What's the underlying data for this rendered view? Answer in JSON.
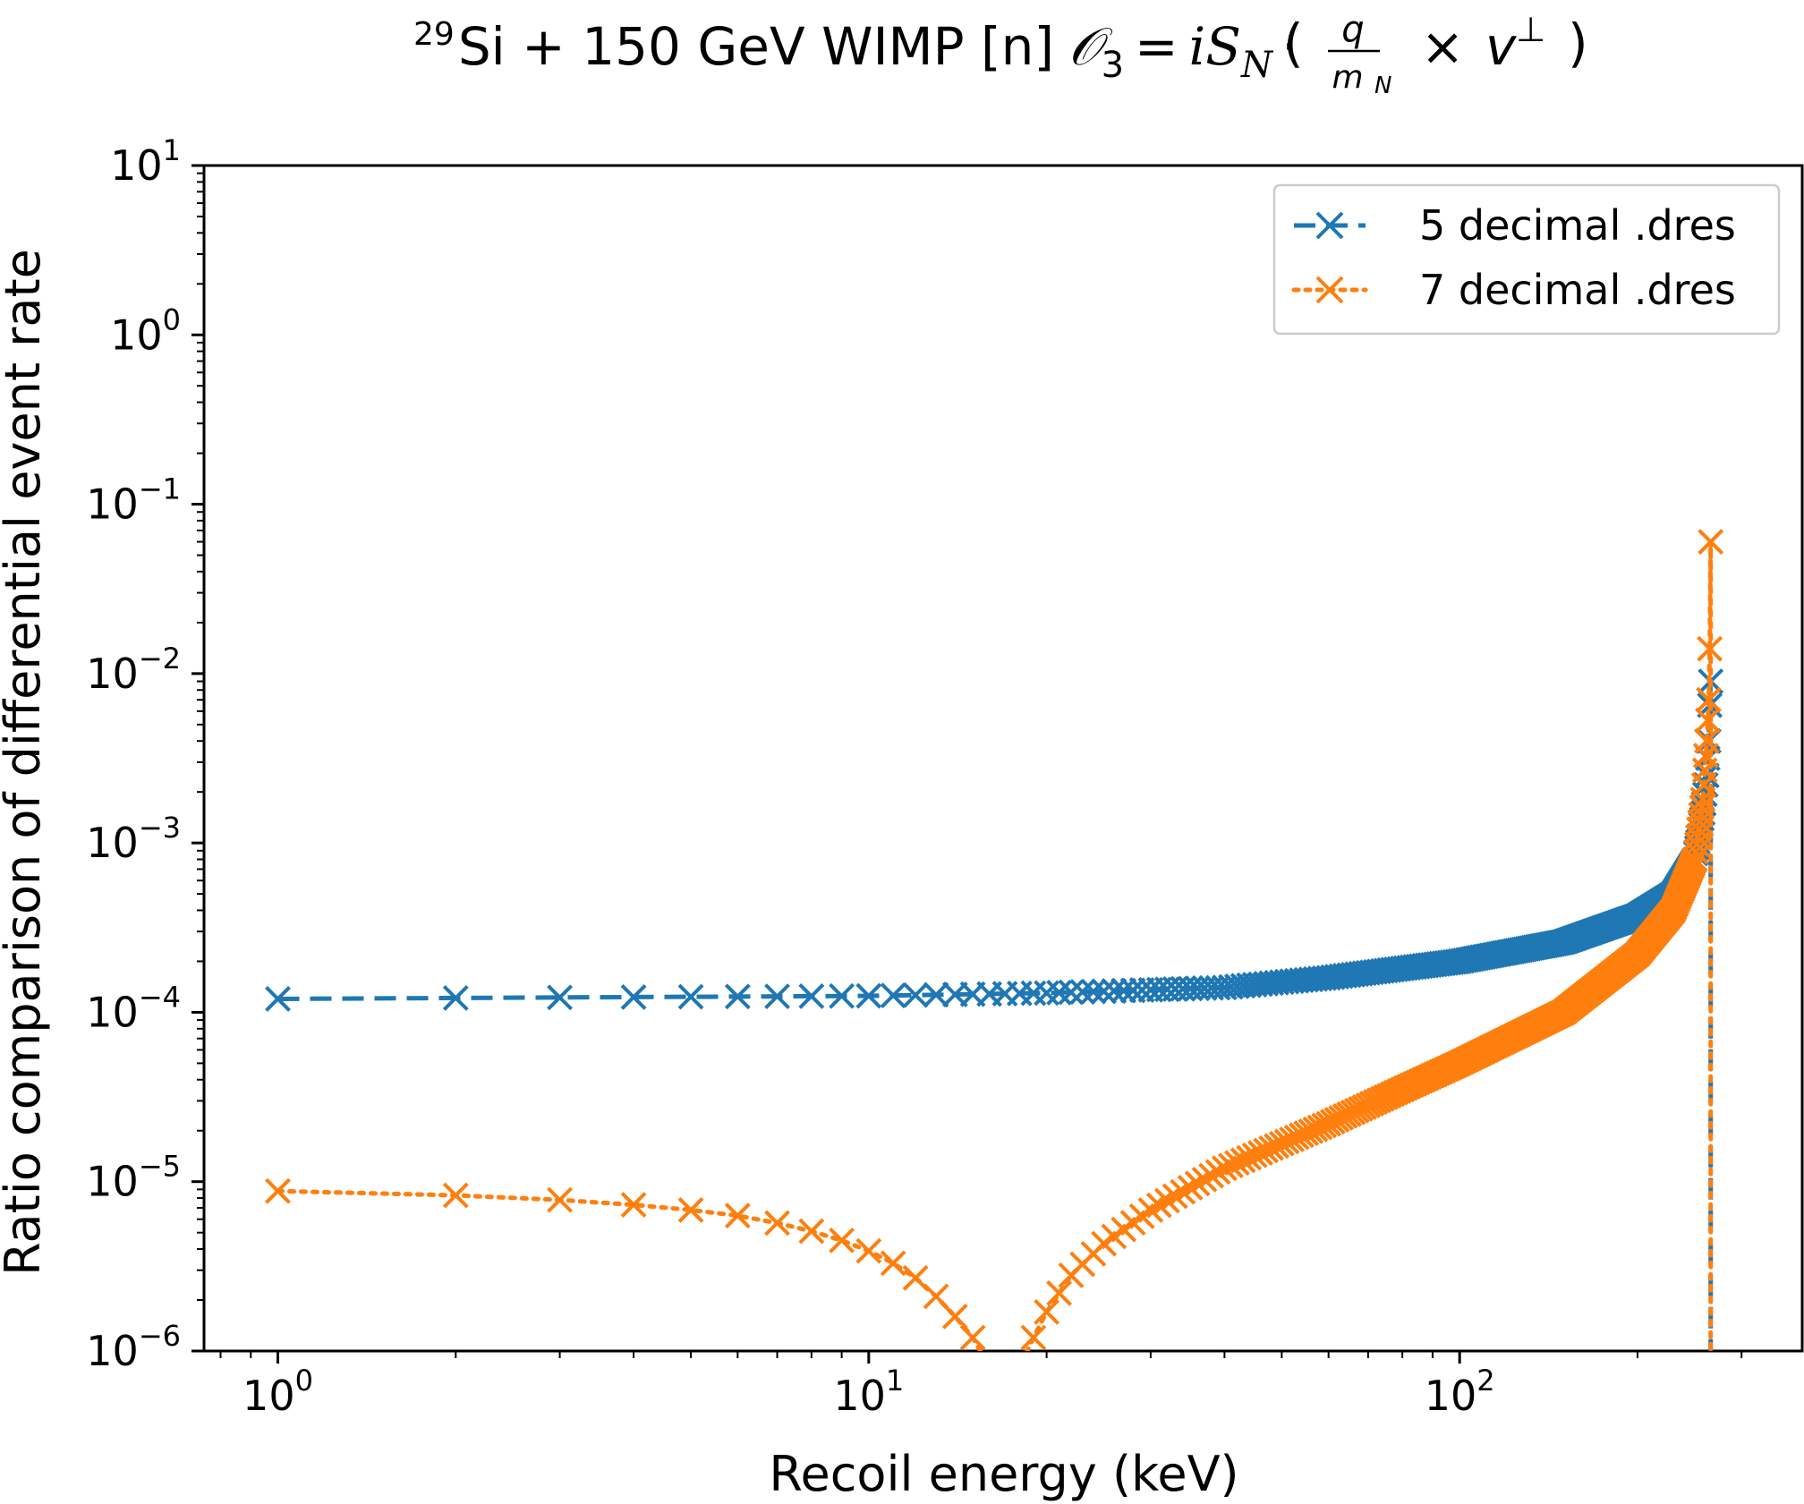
{
  "chart_data": {
    "type": "line",
    "title": {
      "isotope_mass": "29",
      "text": "Si + 150 GeV WIMP [n]",
      "operator_label": "𝒪",
      "operator_index": "3",
      "equals": "=",
      "spin_term": "iS",
      "spin_sub": "N",
      "dot": "·",
      "q_num": "q",
      "q_den": "m",
      "q_den_sub": "N",
      "times": "×",
      "v_term": "v",
      "v_sup": "⊥"
    },
    "xlabel": "Recoil energy (keV)",
    "ylabel": "Ratio comparison of differential event rate",
    "xscale": "log",
    "yscale": "log",
    "xlim": [
      0.75,
      380
    ],
    "ylim": [
      1e-06,
      10
    ],
    "x_ticks": [
      {
        "base": "10",
        "exp": "0",
        "value": 1
      },
      {
        "base": "10",
        "exp": "1",
        "value": 10
      },
      {
        "base": "10",
        "exp": "2",
        "value": 100
      }
    ],
    "y_ticks": [
      {
        "base": "10",
        "exp": "1",
        "value": 10
      },
      {
        "base": "10",
        "exp": "0",
        "value": 1
      },
      {
        "base": "10",
        "exp": "−1",
        "value": 0.1
      },
      {
        "base": "10",
        "exp": "−2",
        "value": 0.01
      },
      {
        "base": "10",
        "exp": "−3",
        "value": 0.001
      },
      {
        "base": "10",
        "exp": "−4",
        "value": 0.0001
      },
      {
        "base": "10",
        "exp": "−5",
        "value": 1e-05
      },
      {
        "base": "10",
        "exp": "−6",
        "value": 1e-06
      }
    ],
    "grid": false,
    "legend_position": "top-right",
    "x_end": 266,
    "series": [
      {
        "name": "5 decimal .dres",
        "color": "#1f77b4",
        "linestyle": "dashed",
        "marker": "x",
        "curve": [
          [
            1,
            0.00012
          ],
          [
            10,
            0.000125
          ],
          [
            20,
            0.00013
          ],
          [
            40,
            0.00014
          ],
          [
            60,
            0.00016
          ],
          [
            100,
            0.0002
          ],
          [
            150,
            0.00026
          ],
          [
            200,
            0.00037
          ],
          [
            230,
            0.0005
          ],
          [
            250,
            0.0008
          ],
          [
            258,
            0.0015
          ],
          [
            262,
            0.0025
          ],
          [
            264,
            0.004
          ],
          [
            265,
            0.0065
          ],
          [
            266,
            0.009
          ]
        ]
      },
      {
        "name": "7 decimal .dres",
        "color": "#ff7f0e",
        "linestyle": "dotted",
        "marker": "x",
        "curve": [
          [
            1,
            8.8e-06
          ],
          [
            2,
            8.3e-06
          ],
          [
            3,
            7.8e-06
          ],
          [
            4,
            7.3e-06
          ],
          [
            5,
            6.8e-06
          ],
          [
            6,
            6.3e-06
          ],
          [
            7,
            5.7e-06
          ],
          [
            8,
            5.1e-06
          ],
          [
            9,
            4.5e-06
          ],
          [
            10,
            3.9e-06
          ],
          [
            11,
            3.3e-06
          ],
          [
            12,
            2.7e-06
          ],
          [
            13,
            2.1e-06
          ],
          [
            14,
            1.6e-06
          ],
          [
            15,
            1.2e-06
          ],
          [
            16,
            8e-07
          ],
          [
            18,
            8e-07
          ],
          [
            19,
            1.2e-06
          ],
          [
            20,
            1.7e-06
          ],
          [
            22,
            2.8e-06
          ],
          [
            25,
            4.3e-06
          ],
          [
            30,
            6.8e-06
          ],
          [
            40,
            1.2e-05
          ],
          [
            60,
            2.2e-05
          ],
          [
            80,
            3.5e-05
          ],
          [
            100,
            5e-05
          ],
          [
            150,
            0.0001
          ],
          [
            200,
            0.00022
          ],
          [
            230,
            0.0004
          ],
          [
            250,
            0.0008
          ],
          [
            258,
            0.0018
          ],
          [
            262,
            0.004
          ],
          [
            264,
            0.007
          ],
          [
            265,
            0.014
          ],
          [
            266,
            0.06
          ]
        ]
      }
    ]
  }
}
